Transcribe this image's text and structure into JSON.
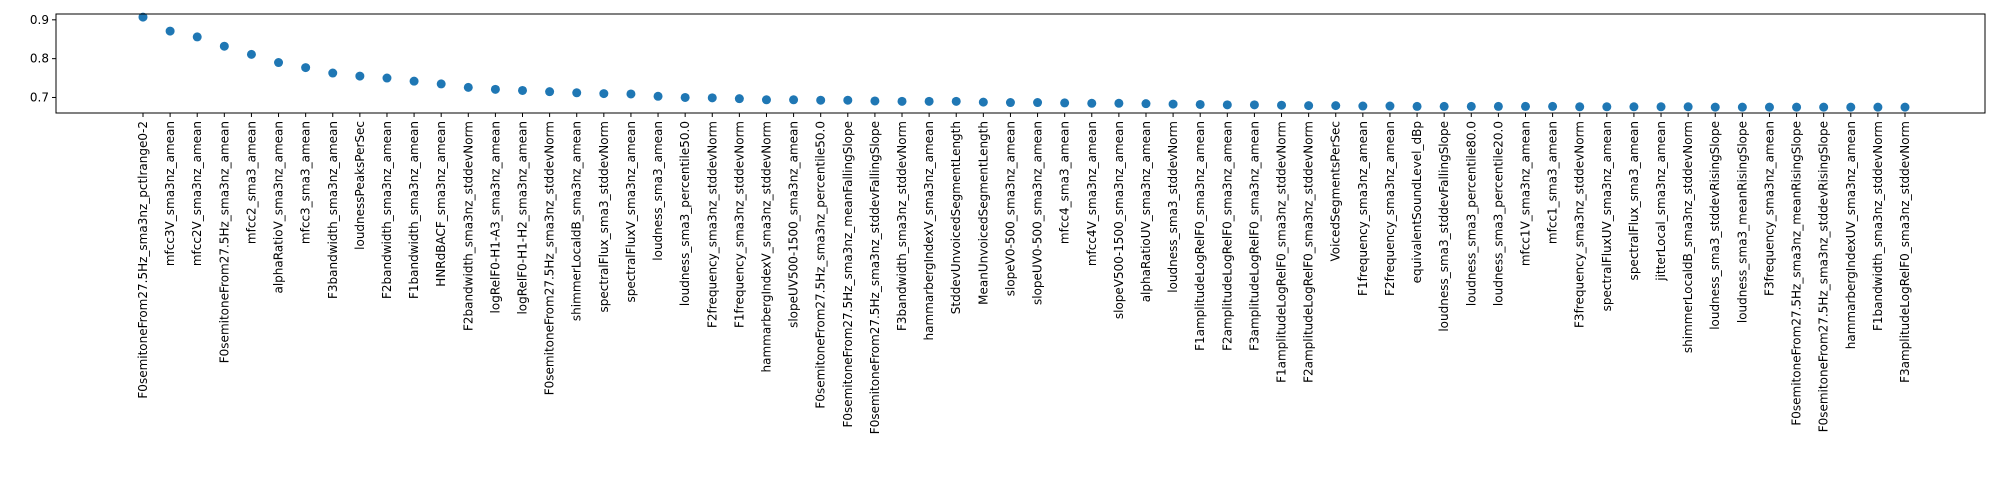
{
  "chart_data": {
    "type": "scatter",
    "title": "",
    "xlabel": "",
    "ylabel": "",
    "ylim": [
      0.66,
      0.915
    ],
    "yticks": [
      "0.7",
      "0.8",
      "0.9"
    ],
    "grid": false,
    "legend": "none",
    "marker_color": "#1f77b4",
    "categories": [
      "F0semitoneFrom27.5Hz_sma3nz_pctlrange0-2",
      "mfcc3V_sma3nz_amean",
      "mfcc2V_sma3nz_amean",
      "F0semitoneFrom27.5Hz_sma3nz_amean",
      "mfcc2_sma3_amean",
      "alphaRatioV_sma3nz_amean",
      "mfcc3_sma3_amean",
      "F3bandwidth_sma3nz_amean",
      "loudnessPeaksPerSec",
      "F2bandwidth_sma3nz_amean",
      "F1bandwidth_sma3nz_amean",
      "HNRdBACF_sma3nz_amean",
      "F2bandwidth_sma3nz_stddevNorm",
      "logRelF0-H1-A3_sma3nz_amean",
      "logRelF0-H1-H2_sma3nz_amean",
      "F0semitoneFrom27.5Hz_sma3nz_stddevNorm",
      "shimmerLocaldB_sma3nz_amean",
      "spectralFlux_sma3_stddevNorm",
      "spectralFluxV_sma3nz_amean",
      "loudness_sma3_amean",
      "loudness_sma3_percentile50.0",
      "F2frequency_sma3nz_stddevNorm",
      "F1frequency_sma3nz_stddevNorm",
      "hammarbergIndexV_sma3nz_stddevNorm",
      "slopeUV500-1500_sma3nz_amean",
      "F0semitoneFrom27.5Hz_sma3nz_percentile50.0",
      "F0semitoneFrom27.5Hz_sma3nz_meanFallingSlope",
      "F0semitoneFrom27.5Hz_sma3nz_stddevFallingSlope",
      "F3bandwidth_sma3nz_stddevNorm",
      "hammarbergIndexV_sma3nz_amean",
      "StddevUnvoicedSegmentLength",
      "MeanUnvoicedSegmentLength",
      "slopeV0-500_sma3nz_amean",
      "slopeUV0-500_sma3nz_amean",
      "mfcc4_sma3_amean",
      "mfcc4V_sma3nz_amean",
      "slopeV500-1500_sma3nz_amean",
      "alphaRatioUV_sma3nz_amean",
      "loudness_sma3_stddevNorm",
      "F1amplitudeLogRelF0_sma3nz_amean",
      "F2amplitudeLogRelF0_sma3nz_amean",
      "F3amplitudeLogRelF0_sma3nz_amean",
      "F1amplitudeLogRelF0_sma3nz_stddevNorm",
      "F2amplitudeLogRelF0_sma3nz_stddevNorm",
      "VoicedSegmentsPerSec",
      "F1frequency_sma3nz_amean",
      "F2frequency_sma3nz_amean",
      "equivalentSoundLevel_dBp",
      "loudness_sma3_stddevFallingSlope",
      "loudness_sma3_percentile80.0",
      "loudness_sma3_percentile20.0",
      "mfcc1V_sma3nz_amean",
      "mfcc1_sma3_amean",
      "F3frequency_sma3nz_stddevNorm",
      "spectralFluxUV_sma3nz_amean",
      "spectralFlux_sma3_amean",
      "jitterLocal_sma3nz_amean",
      "shimmerLocaldB_sma3nz_stddevNorm",
      "loudness_sma3_stddevRisingSlope",
      "loudness_sma3_meanRisingSlope",
      "F3frequency_sma3nz_amean",
      "F0semitoneFrom27.5Hz_sma3nz_meanRisingSlope",
      "F0semitoneFrom27.5Hz_sma3nz_stddevRisingSlope",
      "hammarbergIndexUV_sma3nz_amean",
      "F1bandwidth_sma3nz_stddevNorm",
      "F3amplitudeLogRelF0_sma3nz_stddevNorm"
    ],
    "values": [
      0.907,
      0.871,
      0.856,
      0.832,
      0.811,
      0.79,
      0.777,
      0.763,
      0.755,
      0.75,
      0.742,
      0.735,
      0.726,
      0.721,
      0.718,
      0.715,
      0.712,
      0.71,
      0.709,
      0.703,
      0.7,
      0.699,
      0.697,
      0.694,
      0.694,
      0.693,
      0.693,
      0.691,
      0.69,
      0.69,
      0.69,
      0.688,
      0.687,
      0.687,
      0.686,
      0.685,
      0.685,
      0.684,
      0.683,
      0.682,
      0.681,
      0.681,
      0.68,
      0.679,
      0.679,
      0.678,
      0.678,
      0.677,
      0.677,
      0.677,
      0.677,
      0.677,
      0.677,
      0.676,
      0.676,
      0.676,
      0.676,
      0.676,
      0.675,
      0.675,
      0.675,
      0.675,
      0.675,
      0.675,
      0.675,
      0.675
    ]
  }
}
